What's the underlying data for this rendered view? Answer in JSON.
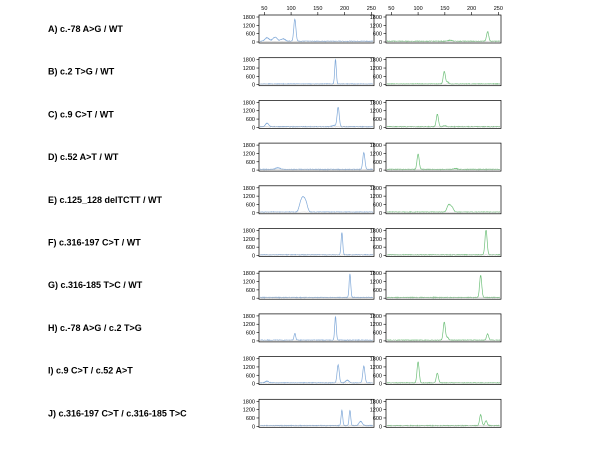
{
  "chart_data": {
    "type": "line",
    "x_ticks": [
      50,
      100,
      150,
      200,
      250
    ],
    "y_ticks": [
      0,
      600,
      1200,
      1800
    ],
    "xlim": [
      40,
      255
    ],
    "ylim": [
      0,
      1800
    ],
    "colors": {
      "left": "#7fa8d8",
      "right": "#6fc07a",
      "noise": "#bcbcbc"
    },
    "rows": [
      {
        "label": "A) c.-78 A>G / WT",
        "left_peaks": [
          [
            107,
            1600,
            2
          ],
          [
            55,
            250,
            4
          ],
          [
            70,
            300,
            4
          ],
          [
            85,
            180,
            4
          ]
        ],
        "right_peaks": [
          [
            230,
            700,
            2
          ],
          [
            160,
            80,
            3
          ]
        ]
      },
      {
        "label": "B) c.2 T>G / WT",
        "left_peaks": [
          [
            183,
            1750,
            1.5
          ]
        ],
        "right_peaks": [
          [
            149,
            900,
            2
          ],
          [
            155,
            150,
            2
          ]
        ]
      },
      {
        "label": "C) c.9 C>T / WT",
        "left_peaks": [
          [
            188,
            1400,
            2
          ],
          [
            55,
            250,
            3
          ],
          [
            180,
            100,
            3
          ]
        ],
        "right_peaks": [
          [
            136,
            900,
            2
          ],
          [
            150,
            60,
            3
          ]
        ]
      },
      {
        "label": "D) c.52 A>T / WT",
        "left_peaks": [
          [
            236,
            1200,
            2
          ],
          [
            75,
            120,
            4
          ]
        ],
        "right_peaks": [
          [
            100,
            1100,
            2
          ],
          [
            170,
            60,
            3
          ]
        ]
      },
      {
        "label": "E) c.125_128 delTCTT / WT",
        "left_peaks": [
          [
            118,
            650,
            3
          ],
          [
            123,
            800,
            3
          ],
          [
            128,
            600,
            3
          ]
        ],
        "right_peaks": [
          [
            157,
            500,
            3
          ],
          [
            163,
            350,
            3
          ]
        ]
      },
      {
        "label": "F) c.316-197 C>T / WT",
        "left_peaks": [
          [
            195,
            1600,
            1.5
          ]
        ],
        "right_peaks": [
          [
            227,
            1800,
            2
          ]
        ]
      },
      {
        "label": "G) c.316-185 T>C / WT",
        "left_peaks": [
          [
            210,
            1700,
            1.5
          ]
        ],
        "right_peaks": [
          [
            217,
            1600,
            2
          ]
        ]
      },
      {
        "label": "H) c.-78 A>G / c.2 T>G",
        "left_peaks": [
          [
            183,
            1700,
            1.5
          ],
          [
            107,
            500,
            1.5
          ]
        ],
        "right_peaks": [
          [
            149,
            1300,
            2
          ],
          [
            230,
            450,
            2
          ],
          [
            155,
            200,
            2
          ]
        ]
      },
      {
        "label": "I) c.9 C>T / c.52 A>T",
        "left_peaks": [
          [
            188,
            1300,
            2
          ],
          [
            236,
            1200,
            2
          ],
          [
            55,
            120,
            3
          ],
          [
            205,
            200,
            3
          ]
        ],
        "right_peaks": [
          [
            100,
            1500,
            2
          ],
          [
            136,
            700,
            2
          ]
        ]
      },
      {
        "label": "J) c.316-197 C>T / c.316-185 T>C",
        "left_peaks": [
          [
            195,
            1100,
            1.5
          ],
          [
            210,
            1100,
            1.5
          ],
          [
            230,
            300,
            3
          ]
        ],
        "right_peaks": [
          [
            217,
            800,
            2
          ],
          [
            227,
            350,
            2
          ]
        ]
      }
    ]
  }
}
